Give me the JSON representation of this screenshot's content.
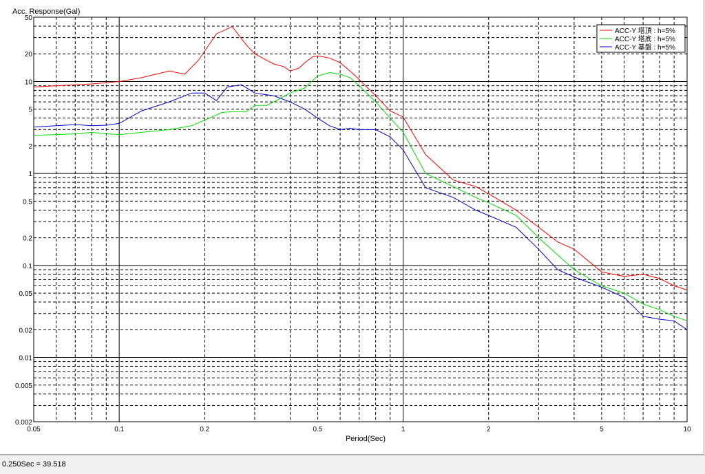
{
  "status_bar": {
    "readout": "0.250Sec = 39.518"
  },
  "chart_data": {
    "type": "line",
    "ylabel": "Acc. Response(Gal)",
    "xlabel": "Period(Sec)",
    "x_scale": "log",
    "y_scale": "log",
    "xlim": [
      0.05,
      10
    ],
    "ylim": [
      0.002,
      50
    ],
    "grid": true,
    "legend_position": "top-right",
    "x_ticks": [
      {
        "v": 0.05,
        "label": "0.05"
      },
      {
        "v": 0.1,
        "label": "0.1"
      },
      {
        "v": 0.2,
        "label": "0.2"
      },
      {
        "v": 0.5,
        "label": "0.5"
      },
      {
        "v": 1,
        "label": "1"
      },
      {
        "v": 2,
        "label": "2"
      },
      {
        "v": 5,
        "label": "5"
      },
      {
        "v": 10,
        "label": "10"
      }
    ],
    "y_ticks": [
      {
        "v": 50,
        "label": "50"
      },
      {
        "v": 20,
        "label": "20"
      },
      {
        "v": 10,
        "label": "10"
      },
      {
        "v": 5,
        "label": "5"
      },
      {
        "v": 2,
        "label": "2"
      },
      {
        "v": 1,
        "label": "1"
      },
      {
        "v": 0.5,
        "label": "0.5"
      },
      {
        "v": 0.2,
        "label": "0.2"
      },
      {
        "v": 0.1,
        "label": "0.1"
      },
      {
        "v": 0.05,
        "label": "0.05"
      },
      {
        "v": 0.02,
        "label": "0.02"
      },
      {
        "v": 0.01,
        "label": "0.01"
      },
      {
        "v": 0.005,
        "label": "0.005"
      },
      {
        "v": 0.002,
        "label": "0.002"
      }
    ],
    "series": [
      {
        "name": "ACC-Y 塔頂 : h=5%",
        "color": "#ff0000",
        "x": [
          0.05,
          0.06,
          0.07,
          0.08,
          0.09,
          0.1,
          0.12,
          0.15,
          0.17,
          0.19,
          0.22,
          0.25,
          0.28,
          0.3,
          0.35,
          0.38,
          0.4,
          0.43,
          0.45,
          0.48,
          0.5,
          0.55,
          0.6,
          0.65,
          0.7,
          0.8,
          0.9,
          1.0,
          1.2,
          1.5,
          1.8,
          2.0,
          2.5,
          3.0,
          3.5,
          4.0,
          5.0,
          6.0,
          7.0,
          8.0,
          9.0,
          10.0
        ],
        "y": [
          8.7,
          9.0,
          9.2,
          9.4,
          9.7,
          10.0,
          11.0,
          13.0,
          12.0,
          17.0,
          33.0,
          39.5,
          25.0,
          20.0,
          15.5,
          14.5,
          13.0,
          14.0,
          16.0,
          18.5,
          19.0,
          18.0,
          16.0,
          13.0,
          10.5,
          7.0,
          4.8,
          4.1,
          1.6,
          0.85,
          0.72,
          0.6,
          0.4,
          0.26,
          0.18,
          0.15,
          0.085,
          0.076,
          0.08,
          0.072,
          0.06,
          0.054
        ]
      },
      {
        "name": "ACC-Y 塔底 : h=5%",
        "color": "#00dd00",
        "x": [
          0.05,
          0.06,
          0.07,
          0.08,
          0.09,
          0.1,
          0.12,
          0.15,
          0.18,
          0.2,
          0.23,
          0.25,
          0.28,
          0.3,
          0.33,
          0.35,
          0.4,
          0.45,
          0.5,
          0.55,
          0.6,
          0.65,
          0.7,
          0.8,
          0.9,
          1.0,
          1.2,
          1.5,
          1.8,
          2.0,
          2.5,
          3.0,
          3.5,
          4.0,
          5.0,
          6.0,
          7.0,
          8.0,
          9.0,
          10.0
        ],
        "y": [
          2.6,
          2.65,
          2.7,
          2.8,
          2.7,
          2.65,
          2.8,
          3.0,
          3.3,
          3.8,
          4.6,
          4.7,
          4.7,
          5.5,
          5.5,
          6.0,
          7.5,
          8.5,
          11.5,
          12.5,
          12.0,
          11.0,
          9.0,
          6.0,
          4.0,
          2.8,
          1.0,
          0.72,
          0.55,
          0.48,
          0.35,
          0.2,
          0.13,
          0.09,
          0.06,
          0.05,
          0.038,
          0.033,
          0.028,
          0.025
        ]
      },
      {
        "name": "ACC-Y 基盤 : h=5%",
        "color": "#0000cc",
        "x": [
          0.05,
          0.06,
          0.07,
          0.08,
          0.09,
          0.1,
          0.12,
          0.15,
          0.18,
          0.2,
          0.22,
          0.24,
          0.27,
          0.3,
          0.35,
          0.4,
          0.45,
          0.5,
          0.55,
          0.6,
          0.65,
          0.7,
          0.8,
          0.9,
          1.0,
          1.2,
          1.5,
          1.8,
          2.0,
          2.5,
          3.0,
          3.5,
          4.0,
          5.0,
          6.0,
          7.0,
          8.0,
          9.0,
          10.0
        ],
        "y": [
          3.2,
          3.3,
          3.4,
          3.3,
          3.35,
          3.5,
          4.8,
          6.0,
          7.5,
          7.5,
          6.2,
          8.7,
          9.2,
          7.5,
          7.0,
          6.0,
          5.0,
          4.0,
          3.3,
          3.0,
          3.1,
          3.0,
          3.0,
          2.5,
          1.8,
          0.7,
          0.55,
          0.4,
          0.35,
          0.26,
          0.15,
          0.09,
          0.075,
          0.058,
          0.045,
          0.028,
          0.026,
          0.025,
          0.02
        ]
      }
    ]
  }
}
